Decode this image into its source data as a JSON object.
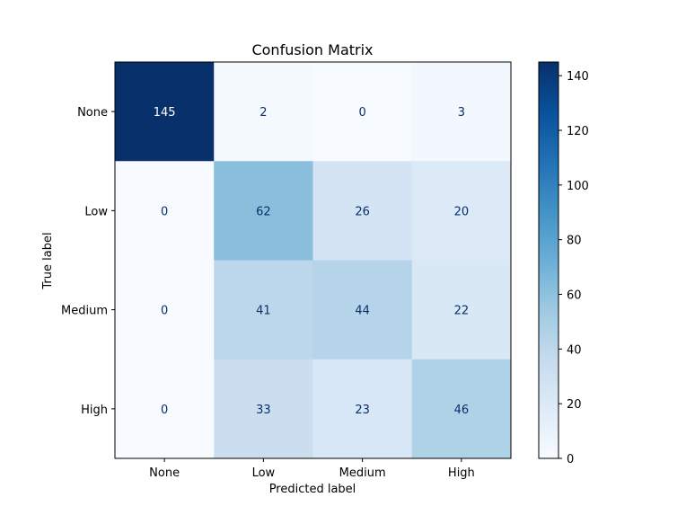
{
  "chart_data": {
    "type": "heatmap",
    "title": "Confusion Matrix",
    "xlabel": "Predicted label",
    "ylabel": "True label",
    "x_categories": [
      "None",
      "Low",
      "Medium",
      "High"
    ],
    "y_categories": [
      "None",
      "Low",
      "Medium",
      "High"
    ],
    "matrix": [
      [
        145,
        2,
        0,
        3
      ],
      [
        0,
        62,
        26,
        20
      ],
      [
        0,
        41,
        44,
        22
      ],
      [
        0,
        33,
        23,
        46
      ]
    ],
    "colormap": "Blues",
    "colorbar": {
      "range": [
        0,
        145
      ],
      "ticks": [
        0,
        20,
        40,
        60,
        80,
        100,
        120,
        140
      ],
      "tick_labels": [
        "0",
        "20",
        "40",
        "60",
        "80",
        "100",
        "120",
        "140"
      ]
    },
    "text_color_dark": "#08306b",
    "text_color_light": "#ffffff"
  }
}
